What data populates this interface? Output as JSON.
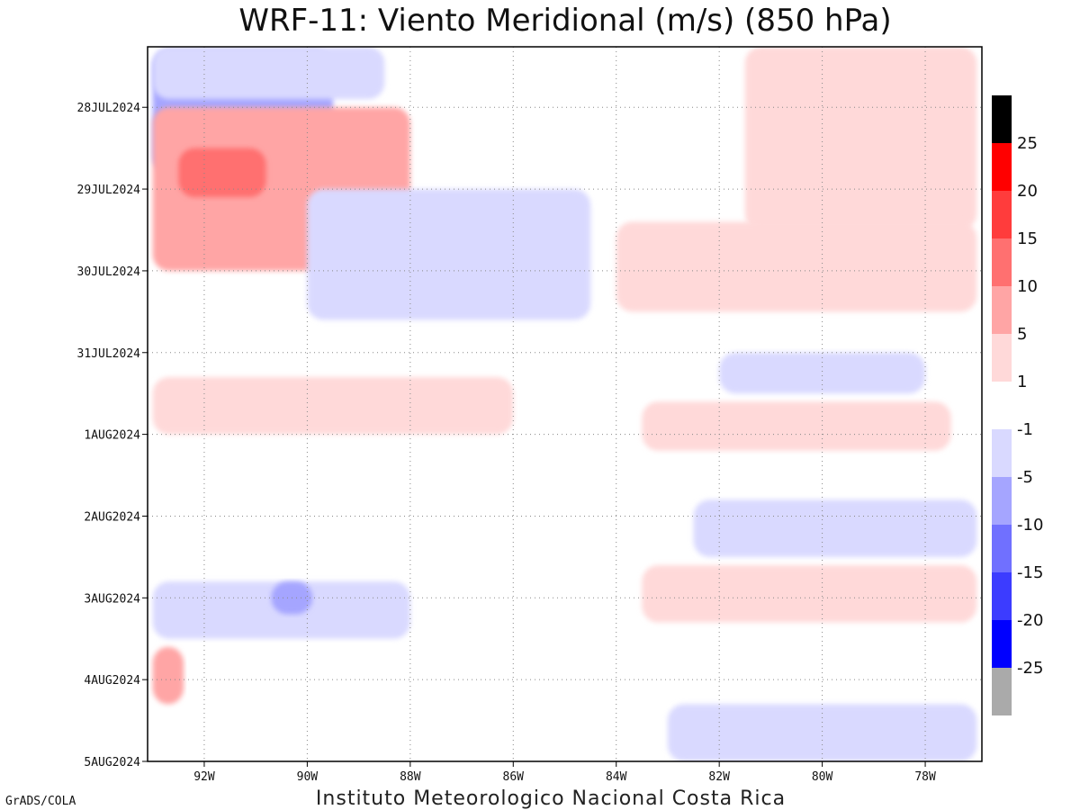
{
  "chart_data": {
    "type": "heatmap",
    "title": "WRF-11: Viento Meridional (m/s) (850 hPa)",
    "footer": "Instituto Meteorologico Nacional Costa Rica",
    "credit": "GrADS/COLA",
    "x_ticks": [
      "92W",
      "90W",
      "88W",
      "86W",
      "84W",
      "82W",
      "80W",
      "78W"
    ],
    "x_tick_values": [
      -92,
      -90,
      -88,
      -86,
      -84,
      -82,
      -80,
      -78
    ],
    "xlim": [
      -93.1,
      -76.9
    ],
    "y_ticks": [
      "28JUL2024",
      "29JUL2024",
      "30JUL2024",
      "31JUL2024",
      "1AUG2024",
      "2AUG2024",
      "3AUG2024",
      "4AUG2024",
      "5AUG2024"
    ],
    "y_tick_values": [
      1,
      2,
      3,
      4,
      5,
      6,
      7,
      8,
      9
    ],
    "ylim": [
      0.26,
      9
    ],
    "grid": true,
    "colorbar": {
      "labels": [
        "25",
        "20",
        "15",
        "10",
        "5",
        "1",
        "-1",
        "-5",
        "-10",
        "-15",
        "-20",
        "-25"
      ],
      "colors": [
        "#000000",
        "#ff0000",
        "#ff3c3c",
        "#ff7070",
        "#ffa5a5",
        "#ffd9d9",
        "#ffffff",
        "#d9d9ff",
        "#a5a5ff",
        "#7070ff",
        "#3c3cff",
        "#0000ff",
        "#aaaaaa"
      ]
    },
    "fields": {
      "background": "#ffffff",
      "regions": [
        {
          "level": -5,
          "color": "#a5a5ff",
          "x": [
            -93.0,
            -89.5
          ],
          "y": [
            0.3,
            1.8
          ]
        },
        {
          "level": -1,
          "color": "#d9d9ff",
          "x": [
            -93.0,
            -88.5
          ],
          "y": [
            0.26,
            0.9
          ]
        },
        {
          "level": 5,
          "color": "#ffa5a5",
          "x": [
            -93.0,
            -88.0
          ],
          "y": [
            1.0,
            3.0
          ]
        },
        {
          "level": 10,
          "color": "#ff7070",
          "x": [
            -92.5,
            -90.8
          ],
          "y": [
            1.5,
            2.1
          ]
        },
        {
          "level": 1,
          "color": "#ffd9d9",
          "x": [
            -81.5,
            -77.0
          ],
          "y": [
            0.26,
            2.5
          ]
        },
        {
          "level": -1,
          "color": "#d9d9ff",
          "x": [
            -90.0,
            -84.5
          ],
          "y": [
            2.0,
            3.6
          ]
        },
        {
          "level": 1,
          "color": "#ffd9d9",
          "x": [
            -84.0,
            -77.0
          ],
          "y": [
            2.4,
            3.5
          ]
        },
        {
          "level": -1,
          "color": "#d9d9ff",
          "x": [
            -93.0,
            -88.0
          ],
          "y": [
            6.8,
            7.5
          ]
        },
        {
          "level": -5,
          "color": "#a5a5ff",
          "x": [
            -90.7,
            -89.9
          ],
          "y": [
            6.8,
            7.2
          ]
        },
        {
          "level": 1,
          "color": "#ffd9d9",
          "x": [
            -93.0,
            -86.0
          ],
          "y": [
            4.3,
            5.0
          ]
        },
        {
          "level": 5,
          "color": "#ffa5a5",
          "x": [
            -93.0,
            -92.4
          ],
          "y": [
            7.6,
            8.3
          ]
        },
        {
          "level": -1,
          "color": "#d9d9ff",
          "x": [
            -83.0,
            -77.0
          ],
          "y": [
            8.3,
            9.0
          ]
        },
        {
          "level": 1,
          "color": "#ffd9d9",
          "x": [
            -83.5,
            -77.0
          ],
          "y": [
            6.6,
            7.3
          ]
        },
        {
          "level": -1,
          "color": "#d9d9ff",
          "x": [
            -82.5,
            -77.0
          ],
          "y": [
            5.8,
            6.5
          ]
        },
        {
          "level": 1,
          "color": "#ffd9d9",
          "x": [
            -83.5,
            -77.5
          ],
          "y": [
            4.6,
            5.2
          ]
        },
        {
          "level": -1,
          "color": "#d9d9ff",
          "x": [
            -82.0,
            -78.0
          ],
          "y": [
            4.0,
            4.5
          ]
        }
      ]
    }
  }
}
